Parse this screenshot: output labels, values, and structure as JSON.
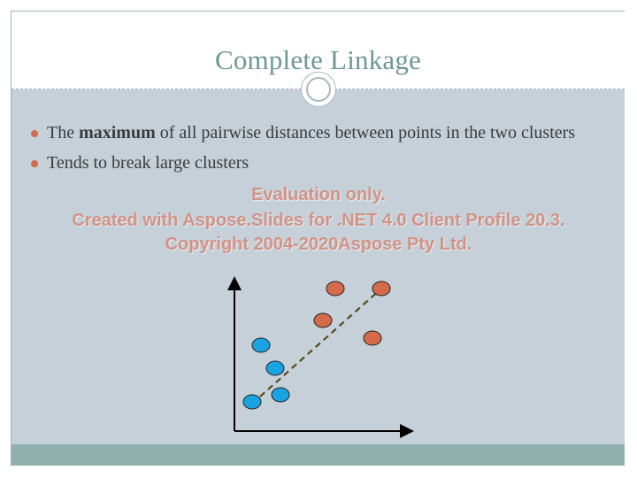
{
  "slide": {
    "title": "Complete Linkage",
    "bullets": [
      {
        "before": "The ",
        "bold": "maximum",
        "after": " of all pairwise distances between points in the two clusters"
      },
      {
        "before": "Tends to break large clusters",
        "bold": "",
        "after": ""
      }
    ],
    "watermark": [
      "Evaluation only.",
      "Created with Aspose.Slides for .NET 4.0 Client Profile 20.3.",
      "Copyright 2004-2020Aspose Pty Ltd."
    ]
  },
  "colors": {
    "title": "#6e9797",
    "body_background": "#c5d0d8",
    "footer_bar": "#90b0ad",
    "cluster_red": "#d56b4a",
    "cluster_blue": "#1aa3e3",
    "dashed_line": "#5a4a1a"
  },
  "diagram": {
    "clusters": [
      {
        "color": "cluster_blue",
        "count": 4
      },
      {
        "color": "cluster_red",
        "count": 4
      }
    ],
    "link": "dashed line connecting farthest pair of points"
  }
}
